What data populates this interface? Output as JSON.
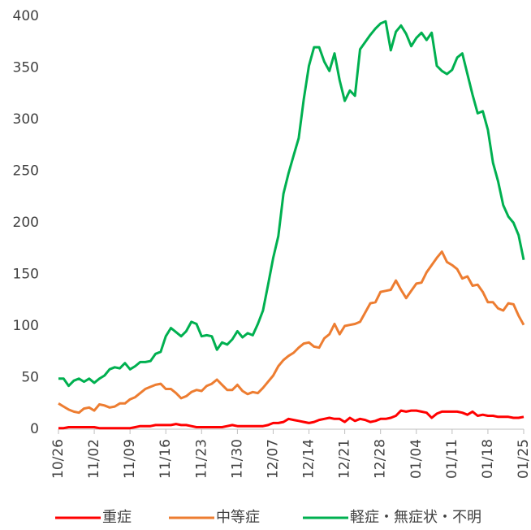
{
  "chart_data": {
    "type": "line",
    "categories": [
      "10/26",
      null,
      null,
      null,
      null,
      null,
      null,
      "11/02",
      null,
      null,
      null,
      null,
      null,
      null,
      "11/09",
      null,
      null,
      null,
      null,
      null,
      null,
      "11/16",
      null,
      null,
      null,
      null,
      null,
      null,
      "11/23",
      null,
      null,
      null,
      null,
      null,
      null,
      "11/30",
      null,
      null,
      null,
      null,
      null,
      null,
      "12/07",
      null,
      null,
      null,
      null,
      null,
      null,
      "12/14",
      null,
      null,
      null,
      null,
      null,
      null,
      "12/21",
      null,
      null,
      null,
      null,
      null,
      null,
      "12/28",
      null,
      null,
      null,
      null,
      null,
      null,
      "01/04",
      null,
      null,
      null,
      null,
      null,
      null,
      "01/11",
      null,
      null,
      null,
      null,
      null,
      null,
      "01/18",
      null,
      null,
      null,
      null,
      null,
      null,
      "01/25"
    ],
    "series": [
      {
        "name": "重症",
        "color": "#ff0000",
        "values": [
          1,
          1,
          2,
          2,
          2,
          2,
          2,
          2,
          1,
          1,
          1,
          1,
          1,
          1,
          1,
          2,
          3,
          3,
          3,
          4,
          4,
          4,
          4,
          5,
          4,
          4,
          3,
          2,
          2,
          2,
          2,
          2,
          2,
          3,
          4,
          3,
          3,
          3,
          3,
          3,
          3,
          4,
          6,
          6,
          7,
          10,
          9,
          8,
          7,
          6,
          7,
          9,
          10,
          11,
          10,
          10,
          7,
          11,
          8,
          10,
          9,
          7,
          8,
          10,
          10,
          11,
          13,
          18,
          17,
          18,
          18,
          17,
          16,
          11,
          15,
          17,
          17,
          17,
          17,
          16,
          14,
          17,
          13,
          14,
          13,
          13,
          12,
          12,
          12,
          11,
          11,
          12
        ]
      },
      {
        "name": "中等症",
        "color": "#ed7d31",
        "values": [
          25,
          22,
          19,
          17,
          16,
          20,
          21,
          18,
          24,
          23,
          21,
          22,
          25,
          25,
          29,
          31,
          35,
          39,
          41,
          43,
          44,
          39,
          39,
          35,
          30,
          32,
          36,
          38,
          37,
          42,
          44,
          48,
          43,
          38,
          38,
          43,
          37,
          34,
          36,
          35,
          40,
          46,
          52,
          61,
          67,
          71,
          74,
          79,
          83,
          84,
          80,
          79,
          88,
          92,
          102,
          92,
          100,
          101,
          102,
          104,
          113,
          122,
          123,
          133,
          134,
          135,
          144,
          135,
          127,
          134,
          141,
          142,
          152,
          159,
          166,
          172,
          162,
          159,
          155,
          146,
          148,
          139,
          140,
          133,
          123,
          123,
          117,
          115,
          122,
          121,
          110,
          101
        ]
      },
      {
        "name": "軽症・無症状・不明",
        "color": "#00b050",
        "values": [
          49,
          49,
          42,
          47,
          49,
          46,
          49,
          45,
          49,
          52,
          58,
          60,
          59,
          64,
          58,
          61,
          65,
          65,
          66,
          73,
          75,
          90,
          98,
          94,
          90,
          95,
          104,
          102,
          90,
          91,
          90,
          77,
          84,
          82,
          87,
          95,
          89,
          93,
          91,
          102,
          115,
          140,
          166,
          187,
          228,
          248,
          265,
          282,
          320,
          352,
          370,
          370,
          356,
          347,
          364,
          338,
          318,
          328,
          323,
          368,
          375,
          382,
          388,
          393,
          395,
          367,
          385,
          391,
          383,
          371,
          379,
          384,
          377,
          384,
          352,
          347,
          344,
          348,
          360,
          364,
          344,
          324,
          306,
          308,
          290,
          258,
          240,
          217,
          206,
          200,
          188,
          164
        ]
      }
    ],
    "ylim": [
      0,
      400
    ],
    "yticks": [
      0,
      50,
      100,
      150,
      200,
      250,
      300,
      350,
      400
    ],
    "grid": false,
    "legend": "bottom"
  }
}
